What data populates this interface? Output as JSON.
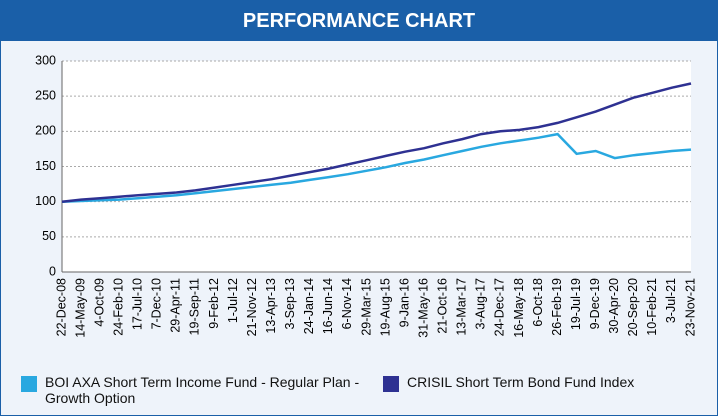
{
  "chart_data": {
    "type": "line",
    "title": "PERFORMANCE CHART",
    "categories": [
      "22-Dec-08",
      "14-May-09",
      "4-Oct-09",
      "24-Feb-10",
      "17-Jul-10",
      "7-Dec-10",
      "29-Apr-11",
      "19-Sep-11",
      "9-Feb-12",
      "1-Jul-12",
      "21-Nov-12",
      "13-Apr-13",
      "3-Sep-13",
      "24-Jan-14",
      "16-Jun-14",
      "6-Nov-14",
      "29-Mar-15",
      "19-Aug-15",
      "9-Jan-16",
      "31-May-16",
      "21-Oct-16",
      "13-Mar-17",
      "3-Aug-17",
      "24-Dec-17",
      "16-May-18",
      "6-Oct-18",
      "26-Feb-19",
      "19-Jul-19",
      "9-Dec-19",
      "30-Apr-20",
      "20-Sep-20",
      "10-Feb-21",
      "3-Jul-21",
      "23-Nov-21"
    ],
    "series": [
      {
        "name": "BOI AXA Short Term Income Fund - Regular Plan - Growth Option",
        "color": "#29a8e0",
        "values": [
          100,
          101,
          102,
          103,
          105,
          107,
          109,
          112,
          115,
          118,
          121,
          124,
          127,
          131,
          135,
          139,
          144,
          149,
          155,
          160,
          166,
          172,
          178,
          183,
          187,
          191,
          196,
          168,
          172,
          162,
          166,
          169,
          172,
          174
        ]
      },
      {
        "name": "CRISIL Short Term Bond Fund Index",
        "color": "#2e3192",
        "values": [
          100,
          103,
          105,
          107,
          109,
          111,
          113,
          116,
          120,
          124,
          128,
          132,
          137,
          142,
          147,
          153,
          159,
          165,
          171,
          176,
          183,
          189,
          196,
          200,
          202,
          206,
          212,
          220,
          228,
          238,
          248,
          255,
          262,
          268
        ]
      }
    ],
    "ylim": [
      0,
      300
    ],
    "yticks": [
      0,
      50,
      100,
      150,
      200,
      250,
      300
    ],
    "grid": true
  }
}
